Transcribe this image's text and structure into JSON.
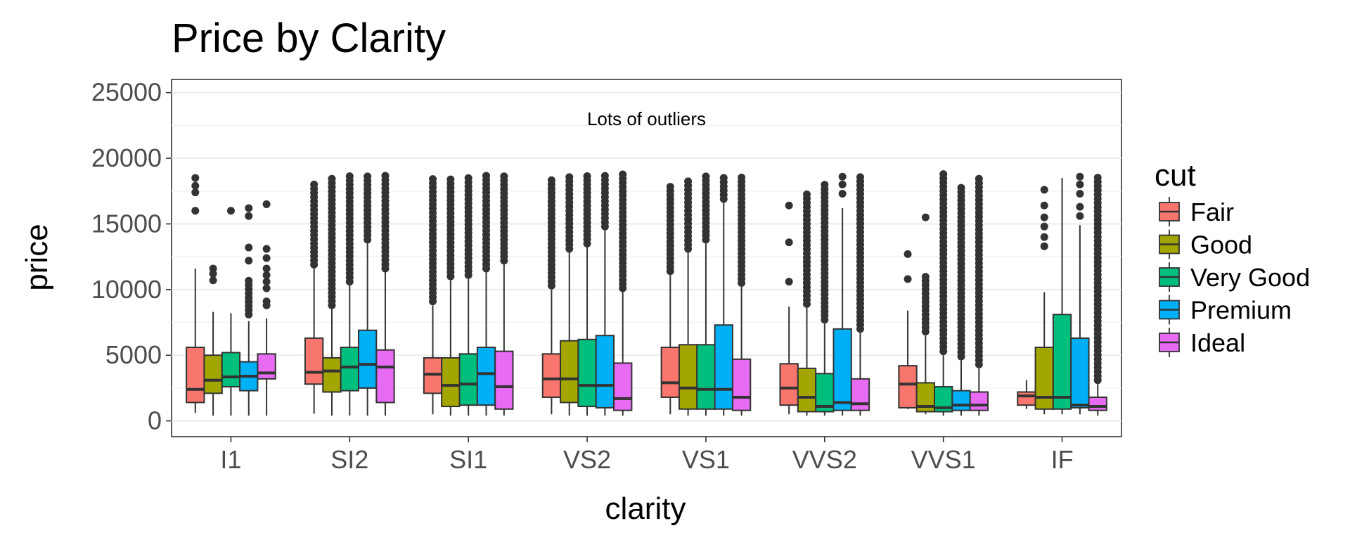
{
  "chart_data": {
    "type": "box",
    "title": "Price by Clarity",
    "xlabel": "clarity",
    "ylabel": "price",
    "ylim": [
      -1200,
      26000
    ],
    "y_ticks": [
      0,
      5000,
      10000,
      15000,
      20000,
      25000
    ],
    "categories": [
      "I1",
      "SI2",
      "SI1",
      "VS2",
      "VS1",
      "VVS2",
      "VVS1",
      "IF"
    ],
    "annotation": {
      "text": "Lots of outliers",
      "x": "VS2",
      "x_offset": 0.5,
      "y": 23000
    },
    "legend": {
      "title": "cut",
      "position": "right"
    },
    "grid": true,
    "series": [
      {
        "name": "Fair",
        "color": "#F8766D",
        "boxes": [
          {
            "lower": 600,
            "q1": 1400,
            "median": 2400,
            "q3": 5600,
            "upper": 11600,
            "outliers": [
              16000,
              17400,
              17900,
              18500
            ],
            "dense": false
          },
          {
            "lower": 550,
            "q1": 2800,
            "median": 3700,
            "q3": 6300,
            "upper": 11800,
            "outliers_from": 11900,
            "outliers_to": 18300,
            "dense": true
          },
          {
            "lower": 500,
            "q1": 2100,
            "median": 3550,
            "q3": 4800,
            "upper": 8800,
            "outliers_from": 9100,
            "outliers_to": 18600,
            "dense": true
          },
          {
            "lower": 500,
            "q1": 1800,
            "median": 3200,
            "q3": 5100,
            "upper": 10000,
            "outliers_from": 10300,
            "outliers_to": 18600,
            "dense": true
          },
          {
            "lower": 500,
            "q1": 1800,
            "median": 2900,
            "q3": 5600,
            "upper": 11100,
            "outliers_from": 11400,
            "outliers_to": 18000,
            "dense": true
          },
          {
            "lower": 500,
            "q1": 1200,
            "median": 2500,
            "q3": 4350,
            "upper": 8700,
            "outliers": [
              10600,
              13600,
              16400
            ],
            "dense": false
          },
          {
            "lower": 900,
            "q1": 1000,
            "median": 2800,
            "q3": 4200,
            "upper": 8400,
            "outliers": [
              10800,
              12700
            ],
            "dense": false
          },
          {
            "lower": 900,
            "q1": 1200,
            "median": 1900,
            "q3": 2200,
            "upper": 3100,
            "outliers": [],
            "dense": false
          }
        ]
      },
      {
        "name": "Good",
        "color": "#A3A500",
        "boxes": [
          {
            "lower": 400,
            "q1": 2100,
            "median": 3100,
            "q3": 5000,
            "upper": 8300,
            "outliers": [
              10700,
              11200,
              11600
            ],
            "dense": false
          },
          {
            "lower": 400,
            "q1": 2200,
            "median": 3800,
            "q3": 4800,
            "upper": 8500,
            "outliers_from": 8800,
            "outliers_to": 18700,
            "dense": true
          },
          {
            "lower": 400,
            "q1": 1100,
            "median": 2700,
            "q3": 4800,
            "upper": 10700,
            "outliers_from": 11000,
            "outliers_to": 18700,
            "dense": true
          },
          {
            "lower": 400,
            "q1": 1400,
            "median": 3200,
            "q3": 6100,
            "upper": 12800,
            "outliers_from": 13100,
            "outliers_to": 18700,
            "dense": true
          },
          {
            "lower": 400,
            "q1": 900,
            "median": 2500,
            "q3": 5800,
            "upper": 12800,
            "outliers_from": 13100,
            "outliers_to": 18400,
            "dense": true
          },
          {
            "lower": 400,
            "q1": 700,
            "median": 1800,
            "q3": 4000,
            "upper": 8600,
            "outliers_from": 8900,
            "outliers_to": 17400,
            "dense": true
          },
          {
            "lower": 500,
            "q1": 700,
            "median": 1100,
            "q3": 2900,
            "upper": 6500,
            "outliers_from": 6800,
            "outliers_to": 11100,
            "extra_outliers": [
              15500
            ],
            "dense": true
          },
          {
            "lower": 500,
            "q1": 900,
            "median": 1800,
            "q3": 5600,
            "upper": 9800,
            "outliers": [
              13300,
              14000,
              14800,
              15500,
              16400,
              17600
            ],
            "dense": false
          }
        ]
      },
      {
        "name": "Very Good",
        "color": "#00BF7D",
        "boxes": [
          {
            "lower": 400,
            "q1": 2600,
            "median": 3350,
            "q3": 5200,
            "upper": 8200,
            "outliers": [
              16000
            ],
            "dense": false
          },
          {
            "lower": 400,
            "q1": 2300,
            "median": 4100,
            "q3": 5600,
            "upper": 10300,
            "outliers_from": 10600,
            "outliers_to": 18800,
            "dense": true
          },
          {
            "lower": 400,
            "q1": 1200,
            "median": 2800,
            "q3": 5100,
            "upper": 10800,
            "outliers_from": 11100,
            "outliers_to": 18800,
            "dense": true
          },
          {
            "lower": 400,
            "q1": 1100,
            "median": 2700,
            "q3": 6200,
            "upper": 13200,
            "outliers_from": 13500,
            "outliers_to": 18800,
            "dense": true
          },
          {
            "lower": 400,
            "q1": 900,
            "median": 2400,
            "q3": 5800,
            "upper": 13500,
            "outliers_from": 13800,
            "outliers_to": 18800,
            "dense": true
          },
          {
            "lower": 400,
            "q1": 700,
            "median": 1100,
            "q3": 3600,
            "upper": 7400,
            "outliers_from": 7700,
            "outliers_to": 18300,
            "dense": true
          },
          {
            "lower": 400,
            "q1": 700,
            "median": 1000,
            "q3": 2600,
            "upper": 5000,
            "outliers_from": 5300,
            "outliers_to": 18800,
            "dense": true
          },
          {
            "lower": 500,
            "q1": 900,
            "median": 1800,
            "q3": 8100,
            "upper": 18500,
            "outliers": [],
            "dense": false
          }
        ]
      },
      {
        "name": "Premium",
        "color": "#00B0F6",
        "boxes": [
          {
            "lower": 400,
            "q1": 2300,
            "median": 3400,
            "q3": 4500,
            "upper": 7600,
            "outliers_from": 8100,
            "outliers_to": 10800,
            "extra_outliers": [
              12200,
              13200,
              15600,
              16200
            ],
            "dense": true
          },
          {
            "lower": 400,
            "q1": 2500,
            "median": 4300,
            "q3": 6900,
            "upper": 13500,
            "outliers_from": 13800,
            "outliers_to": 18800,
            "dense": true
          },
          {
            "lower": 400,
            "q1": 1200,
            "median": 3600,
            "q3": 5600,
            "upper": 11300,
            "outliers_from": 11600,
            "outliers_to": 18800,
            "dense": true
          },
          {
            "lower": 400,
            "q1": 1000,
            "median": 2700,
            "q3": 6500,
            "upper": 14500,
            "outliers_from": 14800,
            "outliers_to": 18800,
            "dense": true
          },
          {
            "lower": 400,
            "q1": 900,
            "median": 2400,
            "q3": 7300,
            "upper": 16600,
            "outliers_from": 16900,
            "outliers_to": 18800,
            "dense": true
          },
          {
            "lower": 400,
            "q1": 800,
            "median": 1400,
            "q3": 7000,
            "upper": 16200,
            "outliers": [
              17300,
              18000,
              18600
            ],
            "dense": false
          },
          {
            "lower": 400,
            "q1": 800,
            "median": 1200,
            "q3": 2300,
            "upper": 4600,
            "outliers_from": 4900,
            "outliers_to": 17800,
            "dense": true
          },
          {
            "lower": 500,
            "q1": 1000,
            "median": 1200,
            "q3": 6300,
            "upper": 14900,
            "outliers": [
              15600,
              16300,
              17300,
              18000,
              18600
            ],
            "dense": false
          }
        ]
      },
      {
        "name": "Ideal",
        "color": "#E76BF3",
        "boxes": [
          {
            "lower": 400,
            "q1": 3200,
            "median": 3650,
            "q3": 5100,
            "upper": 7800,
            "outliers": [
              8800,
              9100,
              10100,
              10600,
              11100,
              11600,
              12400,
              13100,
              16500
            ],
            "dense": false
          },
          {
            "lower": 400,
            "q1": 1400,
            "median": 4100,
            "q3": 5400,
            "upper": 11300,
            "outliers_from": 11600,
            "outliers_to": 18800,
            "dense": true
          },
          {
            "lower": 400,
            "q1": 900,
            "median": 2600,
            "q3": 5300,
            "upper": 11900,
            "outliers_from": 12200,
            "outliers_to": 18800,
            "dense": true
          },
          {
            "lower": 400,
            "q1": 800,
            "median": 1700,
            "q3": 4400,
            "upper": 9800,
            "outliers_from": 10100,
            "outliers_to": 18800,
            "dense": true
          },
          {
            "lower": 400,
            "q1": 800,
            "median": 1800,
            "q3": 4700,
            "upper": 10200,
            "outliers_from": 10500,
            "outliers_to": 18800,
            "dense": true
          },
          {
            "lower": 400,
            "q1": 800,
            "median": 1300,
            "q3": 3200,
            "upper": 6700,
            "outliers_from": 7000,
            "outliers_to": 18800,
            "dense": true
          },
          {
            "lower": 400,
            "q1": 800,
            "median": 1200,
            "q3": 2200,
            "upper": 4000,
            "outliers_from": 4300,
            "outliers_to": 18700,
            "dense": true
          },
          {
            "lower": 400,
            "q1": 800,
            "median": 1100,
            "q3": 1800,
            "upper": 2800,
            "outliers_from": 3100,
            "outliers_to": 18800,
            "dense": true
          }
        ]
      }
    ]
  }
}
